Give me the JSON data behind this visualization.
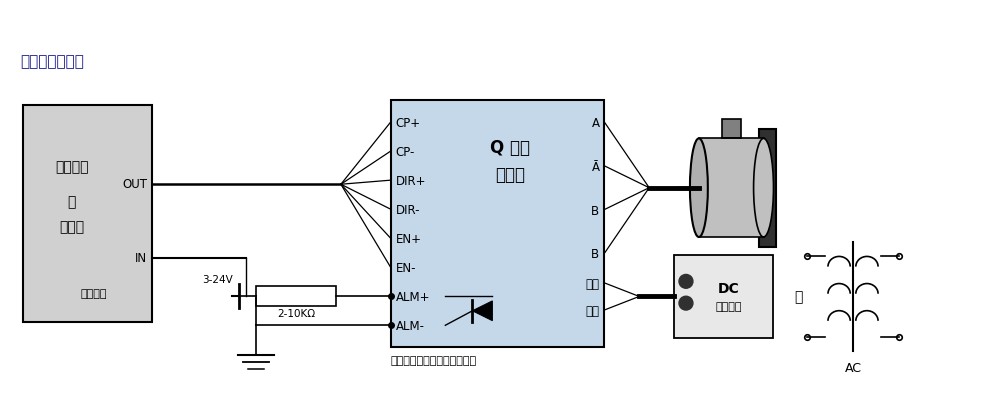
{
  "bg_color": "#ffffff",
  "header_text": "》接线示意图》",
  "header_text2": "【接线示意图】",
  "controller_text_line1": "数控系统",
  "controller_text_line2": "或",
  "controller_text_line3": "控制器",
  "ctrl_power_label": "控制电源",
  "out_label": "OUT",
  "in_label": "IN",
  "voltage_label": "3-24V",
  "resistor_label": "2-10KΩ",
  "left_pins": [
    "CP+",
    "CP-",
    "DIR+",
    "DIR-",
    "EN+",
    "EN-",
    "ALM+",
    "ALM-"
  ],
  "driver_title1": "Q 系列",
  "driver_title2": "驱动器",
  "right_pins_motor": [
    "A",
    "Ā",
    "B",
    "B̄"
  ],
  "power_label1": "电源",
  "power_label2": "输入",
  "dc_text1": "DC",
  "dc_text2": "开关电源",
  "or_label": "或",
  "ac_label": "AC",
  "bottom_note": "正常光耦导通，报警光耦截止",
  "driver_box_color": "#c5d8ea",
  "ctrl_box_color": "#d0d0d0"
}
